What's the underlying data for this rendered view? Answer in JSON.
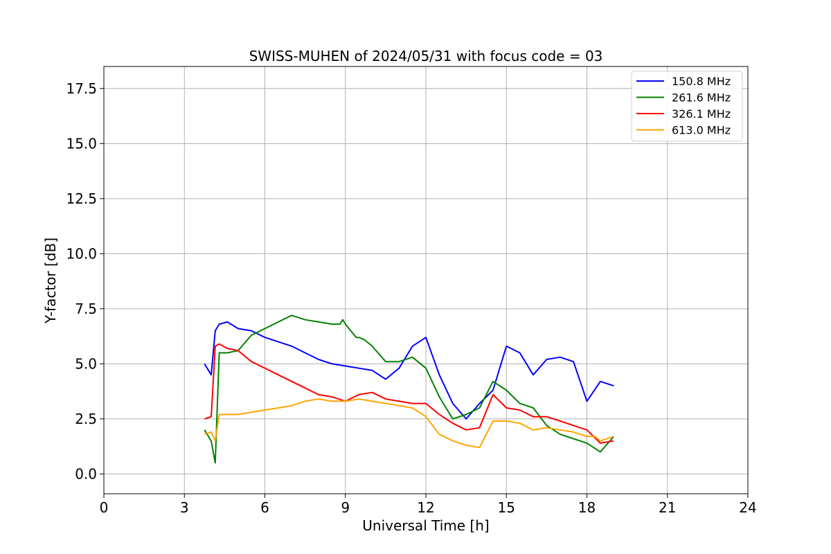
{
  "chart_data": {
    "type": "line",
    "title": "SWISS-MUHEN of 2024/05/31 with focus code = 03",
    "xlabel": "Universal Time [h]",
    "ylabel": "Y-factor [dB]",
    "xlim": [
      0,
      24
    ],
    "ylim": [
      -0.9,
      18.5
    ],
    "xticks": [
      0,
      3,
      6,
      9,
      12,
      15,
      18,
      21,
      24
    ],
    "yticks": [
      0.0,
      2.5,
      5.0,
      7.5,
      10.0,
      12.5,
      15.0,
      17.5
    ],
    "ytick_labels": [
      "0.0",
      "2.5",
      "5.0",
      "7.5",
      "10.0",
      "12.5",
      "15.0",
      "17.5"
    ],
    "grid": true,
    "legend_position": "top-right",
    "series": [
      {
        "name": "150.8 MHz",
        "color": "#0000ff",
        "x": [
          3.75,
          4.0,
          4.15,
          4.3,
          4.6,
          5.0,
          5.5,
          6.0,
          6.5,
          7.0,
          7.5,
          8.0,
          8.5,
          9.0,
          9.5,
          10.0,
          10.5,
          11.0,
          11.5,
          12.0,
          12.5,
          13.0,
          13.5,
          14.0,
          14.5,
          15.0,
          15.5,
          16.0,
          16.5,
          17.0,
          17.5,
          18.0,
          18.5,
          19.0
        ],
        "y": [
          5.0,
          4.5,
          6.5,
          6.8,
          6.9,
          6.6,
          6.5,
          6.2,
          6.0,
          5.8,
          5.5,
          5.2,
          5.0,
          4.9,
          4.8,
          4.7,
          4.3,
          4.8,
          5.8,
          6.2,
          4.5,
          3.2,
          2.5,
          3.2,
          3.8,
          5.8,
          5.5,
          4.5,
          5.2,
          5.3,
          5.1,
          3.3,
          4.2,
          4.0
        ]
      },
      {
        "name": "261.6 MHz",
        "color": "#008000",
        "x": [
          3.75,
          4.0,
          4.15,
          4.3,
          4.6,
          5.0,
          5.5,
          6.0,
          6.5,
          7.0,
          7.5,
          8.0,
          8.5,
          8.8,
          8.9,
          9.0,
          9.2,
          9.4,
          9.5,
          9.7,
          10.0,
          10.5,
          11.0,
          11.5,
          12.0,
          12.5,
          13.0,
          13.5,
          14.0,
          14.5,
          15.0,
          15.5,
          16.0,
          16.5,
          17.0,
          17.5,
          18.0,
          18.5,
          19.0
        ],
        "y": [
          2.0,
          1.5,
          0.5,
          5.5,
          5.5,
          5.6,
          6.3,
          6.6,
          6.9,
          7.2,
          7.0,
          6.9,
          6.8,
          6.8,
          7.0,
          6.8,
          6.5,
          6.2,
          6.2,
          6.1,
          5.8,
          5.1,
          5.1,
          5.3,
          4.8,
          3.5,
          2.5,
          2.7,
          3.0,
          4.2,
          3.8,
          3.2,
          3.0,
          2.2,
          1.8,
          1.6,
          1.4,
          1.0,
          1.7
        ]
      },
      {
        "name": "326.1 MHz",
        "color": "#ff0000",
        "x": [
          3.75,
          4.0,
          4.15,
          4.3,
          4.6,
          5.0,
          5.5,
          6.0,
          6.5,
          7.0,
          7.5,
          8.0,
          8.5,
          9.0,
          9.5,
          10.0,
          10.5,
          11.0,
          11.5,
          12.0,
          12.5,
          13.0,
          13.5,
          14.0,
          14.5,
          15.0,
          15.5,
          16.0,
          16.5,
          17.0,
          17.5,
          18.0,
          18.5,
          19.0
        ],
        "y": [
          2.5,
          2.6,
          5.8,
          5.9,
          5.7,
          5.6,
          5.1,
          4.8,
          4.5,
          4.2,
          3.9,
          3.6,
          3.5,
          3.3,
          3.6,
          3.7,
          3.4,
          3.3,
          3.2,
          3.2,
          2.7,
          2.3,
          2.0,
          2.1,
          3.6,
          3.0,
          2.9,
          2.6,
          2.6,
          2.4,
          2.2,
          2.0,
          1.4,
          1.5
        ]
      },
      {
        "name": "613.0 MHz",
        "color": "#ffa500",
        "x": [
          3.75,
          4.0,
          4.15,
          4.3,
          4.6,
          5.0,
          5.5,
          6.0,
          6.5,
          7.0,
          7.5,
          8.0,
          8.5,
          9.0,
          9.5,
          10.0,
          10.5,
          11.0,
          11.5,
          12.0,
          12.5,
          13.0,
          13.5,
          14.0,
          14.5,
          15.0,
          15.5,
          16.0,
          16.5,
          17.0,
          17.5,
          18.0,
          18.3,
          18.5,
          19.0
        ],
        "y": [
          1.8,
          1.9,
          1.5,
          2.7,
          2.7,
          2.7,
          2.8,
          2.9,
          3.0,
          3.1,
          3.3,
          3.4,
          3.3,
          3.3,
          3.4,
          3.3,
          3.2,
          3.1,
          3.0,
          2.6,
          1.8,
          1.5,
          1.3,
          1.2,
          2.4,
          2.4,
          2.3,
          2.0,
          2.1,
          2.0,
          1.9,
          1.7,
          1.7,
          1.5,
          1.7
        ]
      }
    ]
  }
}
